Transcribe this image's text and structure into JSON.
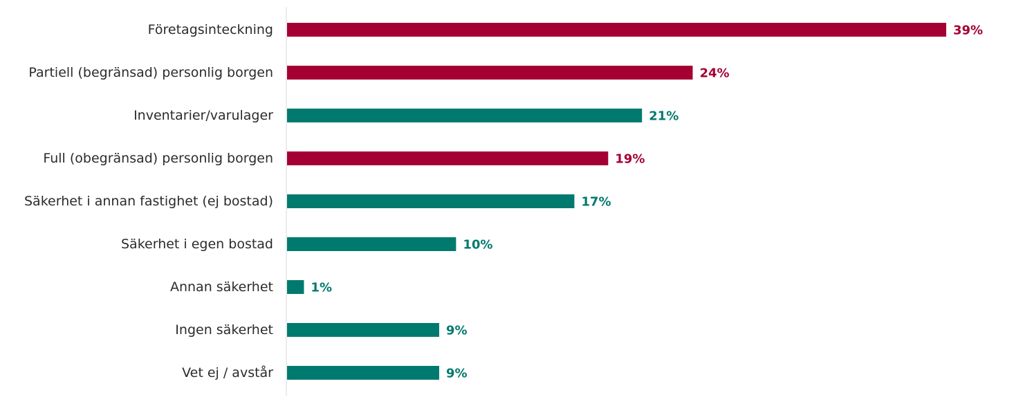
{
  "chart_data": {
    "type": "bar",
    "orientation": "horizontal",
    "title": "",
    "xlabel": "",
    "ylabel": "",
    "xlim": [
      0,
      39
    ],
    "grid": false,
    "legend": "none",
    "value_suffix": "%",
    "colors": {
      "highlight": "#A50034",
      "default": "#007A6E",
      "axis": "#d9d9d9"
    },
    "categories": [
      "Företagsinteckning",
      "Partiell (begränsad) personlig borgen",
      "Inventarier/varulager",
      "Full (obegränsad) personlig borgen",
      "Säkerhet i annan fastighet (ej bostad)",
      "Säkerhet i egen bostad",
      "Annan säkerhet",
      "Ingen säkerhet",
      "Vet ej / avstår"
    ],
    "values": [
      39,
      24,
      21,
      19,
      17,
      10,
      1,
      9,
      9
    ],
    "bar_colors": [
      "highlight",
      "highlight",
      "default",
      "highlight",
      "default",
      "default",
      "default",
      "default",
      "default"
    ]
  }
}
